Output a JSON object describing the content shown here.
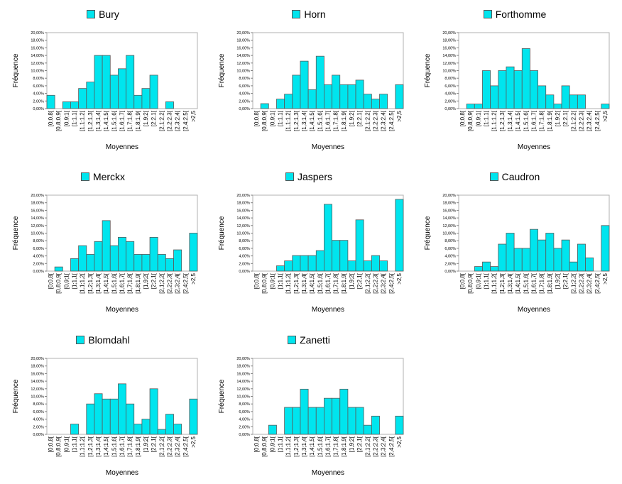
{
  "chart_data": [
    {
      "type": "bar",
      "title": "Bury",
      "xlabel": "Moyennes",
      "ylabel": "Fréquence",
      "categories": [
        "[0;0,8[",
        "[0,8;0,9[",
        "[0,9;1[",
        "[1;1,1[",
        "[1,1;1,2[",
        "[1,2;1,3[",
        "[1,3;1,4[",
        "[1,4;1,5[",
        "[1,5;1,6[",
        "[1,6;1,7[",
        "[1,7;1,8[",
        "[1,8;1,9[",
        "[1,9;2[",
        "[2;2,1[",
        "[2,1;2,2[",
        "[2,2;2,3[",
        "[2,3;2,4[",
        "[2,4;2,5[",
        ">2,5"
      ],
      "values": [
        3.5,
        0,
        1.8,
        1.8,
        5.3,
        7.0,
        14.0,
        14.0,
        8.8,
        10.5,
        14.0,
        3.5,
        5.3,
        8.8,
        0,
        1.8,
        0,
        0,
        0
      ],
      "ylim": [
        0,
        20
      ],
      "yticks": [
        "0,00%",
        "2,00%",
        "4,00%",
        "6,00%",
        "8,00%",
        "10,00%",
        "12,00%",
        "14,00%",
        "16,00%",
        "18,00%",
        "20,00%"
      ],
      "legend": "top",
      "color": "#00e5ee"
    },
    {
      "type": "bar",
      "title": "Horn",
      "xlabel": "Moyennes",
      "ylabel": "Fréquence",
      "categories": [
        "[0;0,8[",
        "[0,8;0,9[",
        "[0,9;1[",
        "[1;1,1[",
        "[1,1;1,2[",
        "[1,2;1,3[",
        "[1,3;1,4[",
        "[1,4;1,5[",
        "[1,5;1,6[",
        "[1,6;1,7[",
        "[1,7;1,8[",
        "[1,8;1,9[",
        "[1,9;2[",
        "[2;2,1[",
        "[2,1;2,2[",
        "[2,2;2,3[",
        "[2,3;2,4[",
        "[2,4;2,5[",
        ">2,5"
      ],
      "values": [
        0,
        1.3,
        0,
        2.5,
        3.8,
        8.8,
        12.5,
        5.0,
        13.8,
        6.3,
        8.8,
        6.3,
        6.3,
        7.5,
        3.8,
        2.5,
        3.8,
        0,
        6.3
      ],
      "ylim": [
        0,
        20
      ],
      "yticks": [
        "0,00%",
        "2,00%",
        "4,00%",
        "6,00%",
        "8,00%",
        "10,00%",
        "12,00%",
        "14,00%",
        "16,00%",
        "18,00%",
        "20,00%"
      ],
      "legend": "top",
      "color": "#00e5ee"
    },
    {
      "type": "bar",
      "title": "Forthomme",
      "xlabel": "Moyennes",
      "ylabel": "Fréquence",
      "categories": [
        "[0;0,8[",
        "[0,8;0,9[",
        "[0,9;1[",
        "[1;1,1[",
        "[1,1;1,2[",
        "[1,2;1,3[",
        "[1,3;1,4[",
        "[1,4;1,5[",
        "[1,5;1,6[",
        "[1,6;1,7[",
        "[1,7;1,8[",
        "[1,8;1,9[",
        "[1,9;2[",
        "[2;2,1[",
        "[2,1;2,2[",
        "[2,2;2,3[",
        "[2,3;2,4[",
        "[2,4;2,5[",
        ">2,5"
      ],
      "values": [
        0,
        1.2,
        1.2,
        10.0,
        6.0,
        10.0,
        11.0,
        10.0,
        15.8,
        10.0,
        6.0,
        3.6,
        1.2,
        6.0,
        3.6,
        3.6,
        0,
        0,
        1.2
      ],
      "ylim": [
        0,
        20
      ],
      "yticks": [
        "0,00%",
        "2,00%",
        "4,00%",
        "6,00%",
        "8,00%",
        "10,00%",
        "12,00%",
        "14,00%",
        "16,00%",
        "18,00%",
        "20,00%"
      ],
      "legend": "top",
      "color": "#00e5ee"
    },
    {
      "type": "bar",
      "title": "Merckx",
      "xlabel": "Moyennes",
      "ylabel": "Fréquence",
      "categories": [
        "[0;0,8[",
        "[0,8;0,9[",
        "[0,9;1[",
        "[1;1,1[",
        "[1,1;1,2[",
        "[1,2;1,3[",
        "[1,3;1,4[",
        "[1,4;1,5[",
        "[1,5;1,6[",
        "[1,6;1,7[",
        "[1,7;1,8[",
        "[1,8;1,9[",
        "[1,9;2[",
        "[2;2,1[",
        "[2,1;2,2[",
        "[2,2;2,3[",
        "[2,3;2,4[",
        "[2,4;2,5[",
        ">2,5"
      ],
      "values": [
        0,
        1.1,
        0,
        3.3,
        6.7,
        4.4,
        7.8,
        13.3,
        6.7,
        8.9,
        7.8,
        4.4,
        4.4,
        8.9,
        4.4,
        3.3,
        5.6,
        0,
        10.0
      ],
      "ylim": [
        0,
        20
      ],
      "yticks": [
        "0,00%",
        "2,00%",
        "4,00%",
        "6,00%",
        "8,00%",
        "10,00%",
        "12,00%",
        "14,00%",
        "16,00%",
        "18,00%",
        "20,00%"
      ],
      "legend": "top",
      "color": "#00e5ee"
    },
    {
      "type": "bar",
      "title": "Jaspers",
      "xlabel": "Moyennes",
      "ylabel": "Fréquence",
      "categories": [
        "[0;0,8[",
        "[0,8;0,9[",
        "[0,9;1[",
        "[1;1,1[",
        "[1,1;1,2[",
        "[1,2;1,3[",
        "[1,3;1,4[",
        "[1,4;1,5[",
        "[1,5;1,6[",
        "[1,6;1,7[",
        "[1,7;1,8[",
        "[1,8;1,9[",
        "[1,9;2[",
        "[2;2,1[",
        "[2,1;2,2[",
        "[2,2;2,3[",
        "[2,3;2,4[",
        "[2,4;2,5[",
        ">2,5"
      ],
      "values": [
        0,
        0,
        0,
        1.4,
        2.7,
        4.1,
        4.1,
        4.1,
        5.4,
        17.6,
        8.1,
        8.1,
        2.7,
        13.5,
        2.7,
        4.1,
        2.7,
        0,
        18.9
      ],
      "ylim": [
        0,
        20
      ],
      "yticks": [
        "0,00%",
        "2,00%",
        "4,00%",
        "6,00%",
        "8,00%",
        "10,00%",
        "12,00%",
        "14,00%",
        "16,00%",
        "18,00%",
        "20,00%"
      ],
      "legend": "top",
      "color": "#00e5ee"
    },
    {
      "type": "bar",
      "title": "Caudron",
      "xlabel": "Moyennes",
      "ylabel": "Fréquence",
      "categories": [
        "[0;0,8[",
        "[0,8;0,9[",
        "[0,9;1[",
        "[1;1,1[",
        "[1,1;1,2[",
        "[1,2;1,3[",
        "[1,3;1,4[",
        "[1,4;1,5[",
        "[1,5;1,6[",
        "[1,6;1,7[",
        "[1,7;1,8[",
        "[1,8;1,9[",
        "[1,9;2[",
        "[2;2,1[",
        "[2,1;2,2[",
        "[2,2;2,3[",
        "[2,3;2,4[",
        "[2,4;2,5[",
        ">2,5"
      ],
      "values": [
        0,
        0,
        1.2,
        2.4,
        1.2,
        7.1,
        10.0,
        6.0,
        6.0,
        11.0,
        8.2,
        10.0,
        6.0,
        8.2,
        2.4,
        7.1,
        3.5,
        0,
        12.0
      ],
      "ylim": [
        0,
        20
      ],
      "yticks": [
        "0,00%",
        "2,00%",
        "4,00%",
        "6,00%",
        "8,00%",
        "10,00%",
        "12,00%",
        "14,00%",
        "16,00%",
        "18,00%",
        "20,00%"
      ],
      "legend": "top",
      "color": "#00e5ee"
    },
    {
      "type": "bar",
      "title": "Blomdahl",
      "xlabel": "Moyennes",
      "ylabel": "Fréquence",
      "categories": [
        "[0;0,8[",
        "[0,8;0,9[",
        "[0,9;1[",
        "[1;1,1[",
        "[1,1;1,2[",
        "[1,2;1,3[",
        "[1,3;1,4[",
        "[1,4;1,5[",
        "[1,5;1,6[",
        "[1,6;1,7[",
        "[1,7;1,8[",
        "[1,8;1,9[",
        "[1,9;2[",
        "[2;2,1[",
        "[2,1;2,2[",
        "[2,2;2,3[",
        "[2,3;2,4[",
        "[2,4;2,5[",
        ">2,5"
      ],
      "values": [
        0,
        0,
        0,
        2.7,
        0,
        8.0,
        10.7,
        9.3,
        9.3,
        13.3,
        8.0,
        2.7,
        4.0,
        12.0,
        1.3,
        5.3,
        2.7,
        0,
        9.3
      ],
      "ylim": [
        0,
        20
      ],
      "yticks": [
        "0,00%",
        "2,00%",
        "4,00%",
        "6,00%",
        "8,00%",
        "10,00%",
        "12,00%",
        "14,00%",
        "16,00%",
        "18,00%",
        "20,00%"
      ],
      "legend": "top",
      "color": "#00e5ee"
    },
    {
      "type": "bar",
      "title": "Zanetti",
      "xlabel": "Moyennes",
      "ylabel": "Fréquence",
      "categories": [
        "[0;0,8[",
        "[0,8;0,9[",
        "[0,9;1[",
        "[1;1,1[",
        "[1,1;1,2[",
        "[1,2;1,3[",
        "[1,3;1,4[",
        "[1,4;1,5[",
        "[1,5;1,6[",
        "[1,6;1,7[",
        "[1,7;1,8[",
        "[1,8;1,9[",
        "[1,9;2[",
        "[2;2,1[",
        "[2,1;2,2[",
        "[2,2;2,3[",
        "[2,3;2,4[",
        "[2,4;2,5[",
        ">2,5"
      ],
      "values": [
        0,
        0,
        2.4,
        0,
        7.1,
        7.1,
        11.9,
        7.1,
        7.1,
        9.5,
        9.5,
        11.9,
        7.1,
        7.1,
        2.4,
        4.8,
        0,
        0,
        4.8
      ],
      "ylim": [
        0,
        20
      ],
      "yticks": [
        "0,00%",
        "2,00%",
        "4,00%",
        "6,00%",
        "8,00%",
        "10,00%",
        "12,00%",
        "14,00%",
        "16,00%",
        "18,00%",
        "20,00%"
      ],
      "legend": "top",
      "color": "#00e5ee"
    }
  ]
}
